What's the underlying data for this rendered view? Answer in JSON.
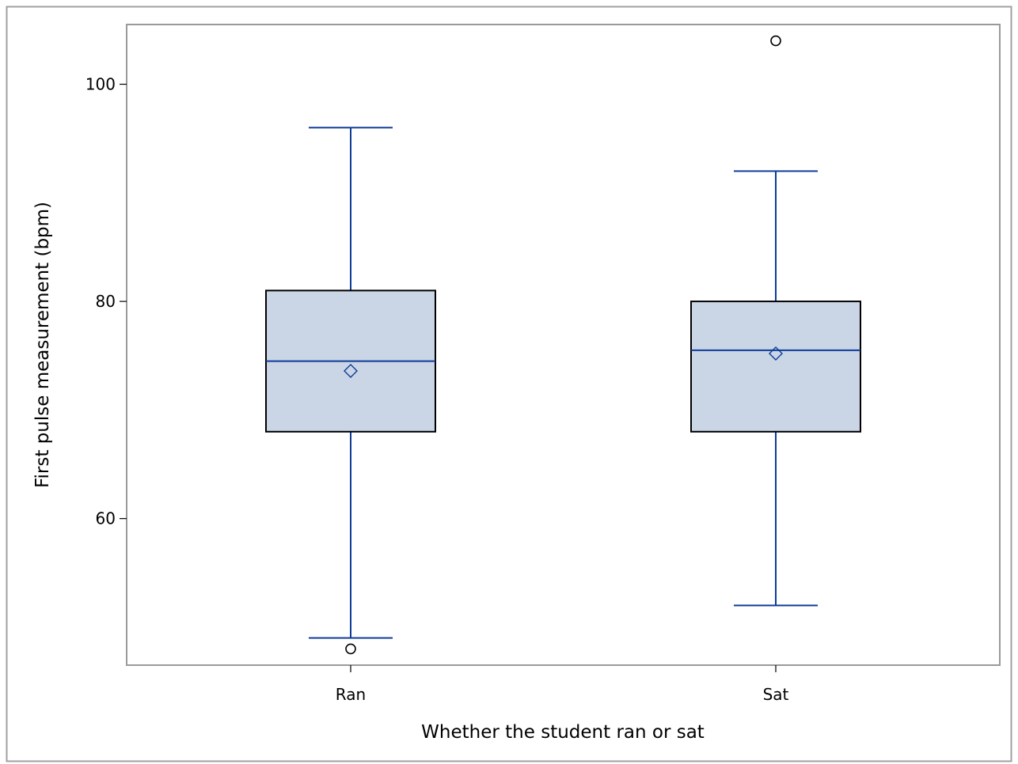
{
  "chart_data": {
    "type": "box",
    "xlabel": "Whether the student ran or sat",
    "ylabel": "First pulse measurement (bpm)",
    "categories": [
      "Ran",
      "Sat"
    ],
    "ylim": [
      46.5,
      105.5
    ],
    "yticks": [
      60,
      80,
      100
    ],
    "grid": false,
    "legend": "none",
    "groups": [
      {
        "name": "Ran",
        "whisker_low": 49,
        "q1": 68,
        "median": 74.5,
        "mean": 73.6,
        "q3": 81,
        "whisker_high": 96,
        "outliers": [
          48
        ]
      },
      {
        "name": "Sat",
        "whisker_low": 52,
        "q1": 68,
        "median": 75.5,
        "mean": 75.2,
        "q3": 80,
        "whisker_high": 92,
        "outliers": [
          104
        ]
      }
    ],
    "colors": {
      "box_fill": "#cad5e6",
      "box_edge": "#000000",
      "line": "#0d3c96",
      "outer_frame": "#a0a0a0",
      "plot_frame": "#9a9a9a"
    }
  }
}
